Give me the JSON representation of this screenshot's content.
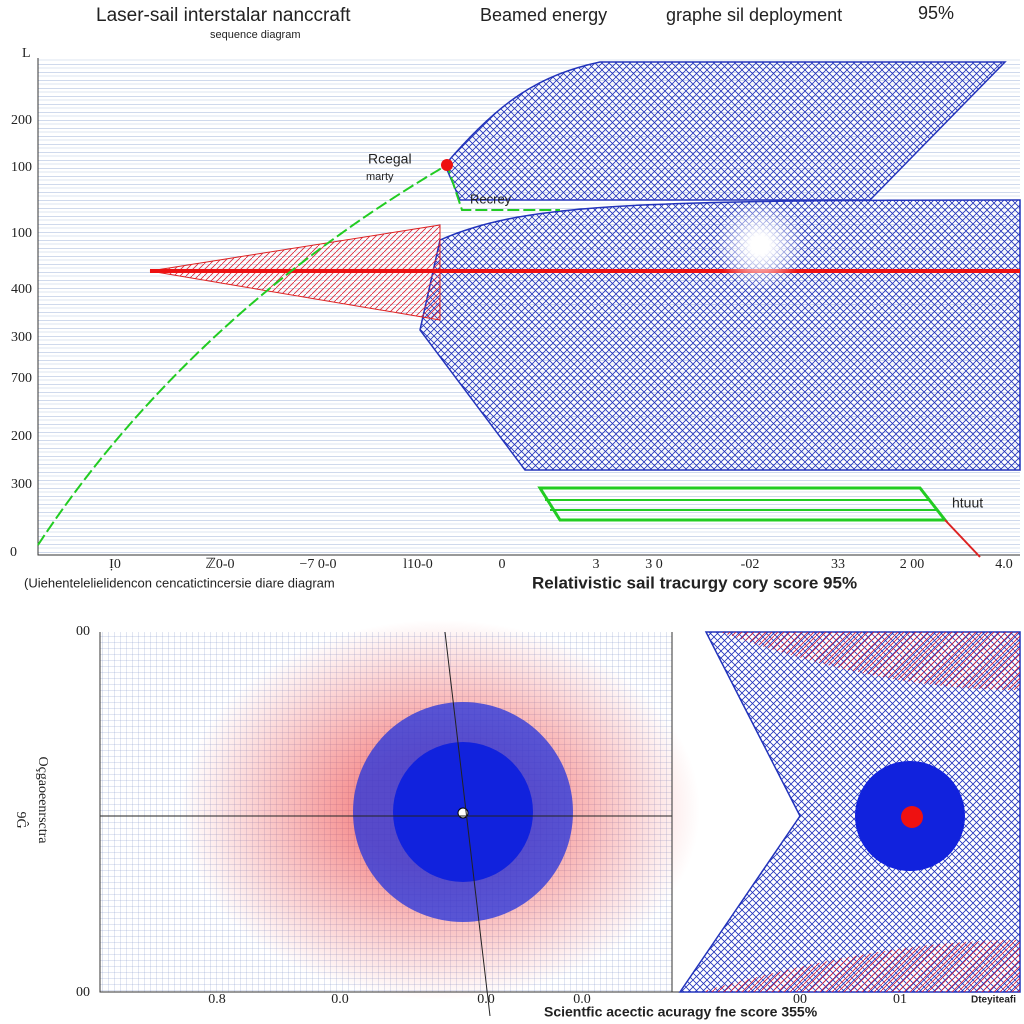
{
  "header": {
    "title": "Laser-sail interstalar nanccraft",
    "subtitle": "sequence diagram",
    "label_energy": "Beamed energy",
    "label_deploy": "graphe sil deployment",
    "score": "95%"
  },
  "top_panel": {
    "corner": "L",
    "y_labels": [
      "200",
      "100",
      "100",
      "400",
      "300",
      "700",
      "200",
      "300",
      "0"
    ],
    "x_labels": [
      "Ị0",
      "ℤ0-0",
      "−7 0-0",
      "l10-0",
      "0",
      "3",
      "3 0",
      "-02",
      "33",
      "2 00",
      "4.0"
    ],
    "annotations": [
      "Rcegal",
      "marty",
      "Recrey",
      "htuut"
    ],
    "caption_left": "(Uiehentelelielidencon cencatictincersie diare diagram",
    "caption_right": "Relativistic sail tracurgy cory score 95%"
  },
  "bottom_panel": {
    "y_labels": [
      "00",
      "00"
    ],
    "y_title": "Oçgaoeenrsctra",
    "y_title_2": "9Ĝ",
    "x_labels": [
      "0.8",
      "0.0",
      "0.0",
      "0.0",
      "00",
      "01"
    ],
    "caption": "Scientfic acectic acuragy fne score 355%",
    "corner_label": "Dteyiteafi"
  }
}
